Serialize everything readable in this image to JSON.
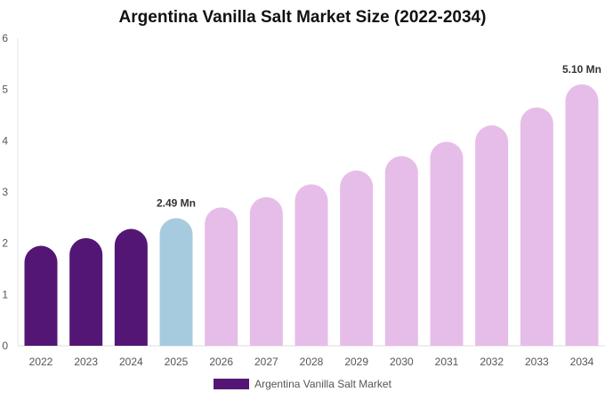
{
  "chart_data": {
    "type": "bar",
    "title": "Argentina Vanilla Salt Market Size (2022-2034)",
    "categories": [
      "2022",
      "2023",
      "2024",
      "2025",
      "2026",
      "2027",
      "2028",
      "2029",
      "2030",
      "2031",
      "2032",
      "2033",
      "2034"
    ],
    "series": [
      {
        "name": "Argentina Vanilla Salt Market",
        "values": [
          1.95,
          2.1,
          2.28,
          2.49,
          2.7,
          2.9,
          3.15,
          3.42,
          3.7,
          3.98,
          4.3,
          4.65,
          5.1
        ]
      }
    ],
    "data_labels": [
      {
        "category": "2025",
        "text": "2.49 Mn"
      },
      {
        "category": "2034",
        "text": "5.10 Mn"
      }
    ],
    "y_ticks": [
      "0",
      "1",
      "2",
      "3",
      "4",
      "5",
      "6"
    ],
    "ylim": [
      0,
      6
    ],
    "xlabel": "",
    "ylabel": "",
    "grid": false,
    "legend_position": "bottom",
    "colors": {
      "historical": "#541675",
      "current": "#a6cbdf",
      "forecast": "#e6bde9"
    },
    "bar_color_groups": [
      "historical",
      "historical",
      "historical",
      "current",
      "forecast",
      "forecast",
      "forecast",
      "forecast",
      "forecast",
      "forecast",
      "forecast",
      "forecast",
      "forecast"
    ]
  }
}
